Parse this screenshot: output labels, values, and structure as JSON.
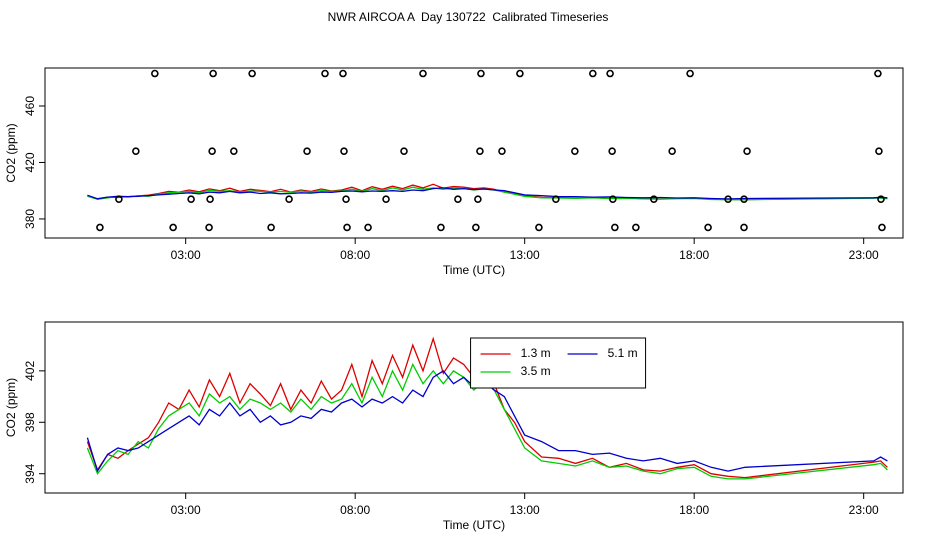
{
  "chart_data": [
    {
      "type": "line",
      "title": "NWR AIRCOA A  Day 130722  Calibrated Timeseries",
      "x_label": "Time (UTC)",
      "y_label": "CO2 (ppm)",
      "xlim": [
        -1.15,
        24.16
      ],
      "ylim": [
        366.5,
        486.9
      ],
      "xticks": [
        {
          "value": 3,
          "label": "03:00"
        },
        {
          "value": 8,
          "label": "08:00"
        },
        {
          "value": 13,
          "label": "13:00"
        },
        {
          "value": 18,
          "label": "18:00"
        },
        {
          "value": 23,
          "label": "23:00"
        }
      ],
      "yticks": [
        380,
        420,
        460
      ],
      "x": [
        0.1,
        0.4,
        0.7,
        1.0,
        1.3,
        1.6,
        1.9,
        2.2,
        2.5,
        2.8,
        3.1,
        3.4,
        3.7,
        4.0,
        4.3,
        4.6,
        4.9,
        5.2,
        5.5,
        5.8,
        6.1,
        6.4,
        6.7,
        7.0,
        7.3,
        7.6,
        7.9,
        8.2,
        8.5,
        8.8,
        9.1,
        9.4,
        9.7,
        10.0,
        10.3,
        10.6,
        10.9,
        11.2,
        11.5,
        11.8,
        12.1,
        12.4,
        12.7,
        13.0,
        13.5,
        14.0,
        14.5,
        15.0,
        15.5,
        16.0,
        16.5,
        17.0,
        17.5,
        18.0,
        18.5,
        19.0,
        19.5,
        23.3,
        23.5,
        23.7
      ],
      "series": [
        {
          "color": "#dd0000",
          "values": [
            396.5,
            394.3,
            395.5,
            395.2,
            395.8,
            396.3,
            396.8,
            398.0,
            399.5,
            399.0,
            400.5,
            399.2,
            401.3,
            400.0,
            401.8,
            399.5,
            401.0,
            400.2,
            399.3,
            401.0,
            399.0,
            400.5,
            399.5,
            401.2,
            399.8,
            400.5,
            402.5,
            400.0,
            402.8,
            401.0,
            403.2,
            401.5,
            404.0,
            402.0,
            404.5,
            401.8,
            403.0,
            402.5,
            401.5,
            402.0,
            401.0,
            399.0,
            398.0,
            396.5,
            395.3,
            395.2,
            394.8,
            395.2,
            394.5,
            394.8,
            394.3,
            394.2,
            394.5,
            394.7,
            394.0,
            393.8,
            393.7,
            394.9,
            395.0,
            394.5
          ]
        },
        {
          "color": "#00cc00",
          "values": [
            396.0,
            394.0,
            395.0,
            395.8,
            395.5,
            396.5,
            396.0,
            397.5,
            398.5,
            399.0,
            399.5,
            398.5,
            400.2,
            399.5,
            400.0,
            399.0,
            399.8,
            399.5,
            399.0,
            399.5,
            398.8,
            399.8,
            399.0,
            400.0,
            399.5,
            399.8,
            401.0,
            399.5,
            401.5,
            400.0,
            402.0,
            400.5,
            402.5,
            401.0,
            402.0,
            401.0,
            402.0,
            401.5,
            400.5,
            401.2,
            400.5,
            399.0,
            397.5,
            396.0,
            395.0,
            394.8,
            394.6,
            395.0,
            394.5,
            394.6,
            394.2,
            394.0,
            394.4,
            394.5,
            393.8,
            393.6,
            393.6,
            394.7,
            394.8,
            394.3
          ]
        },
        {
          "color": "#0000cc",
          "values": [
            396.8,
            394.2,
            395.5,
            396.0,
            395.8,
            396.0,
            396.5,
            397.0,
            397.5,
            398.0,
            398.5,
            397.8,
            399.0,
            398.5,
            399.5,
            398.5,
            399.0,
            398.0,
            398.5,
            397.8,
            398.0,
            398.5,
            398.3,
            399.0,
            398.8,
            399.5,
            399.8,
            399.2,
            399.8,
            399.5,
            400.0,
            399.5,
            400.5,
            400.0,
            401.5,
            402.0,
            401.0,
            401.5,
            400.8,
            401.2,
            400.5,
            400.0,
            398.5,
            397.0,
            396.5,
            395.8,
            395.8,
            395.5,
            395.6,
            395.2,
            395.0,
            395.2,
            394.8,
            395.0,
            394.5,
            394.2,
            394.5,
            395.0,
            395.3,
            395.0
          ]
        }
      ],
      "points": {
        "color": "#000000",
        "x": [
          2.09,
          3.81,
          4.96,
          7.11,
          7.64,
          10.0,
          11.71,
          12.86,
          15.01,
          15.52,
          17.88,
          23.42,
          1.53,
          3.78,
          4.42,
          6.58,
          7.67,
          9.44,
          11.68,
          12.33,
          14.48,
          15.58,
          17.35,
          19.56,
          23.45,
          1.03,
          3.16,
          3.72,
          6.05,
          7.73,
          8.91,
          11.03,
          11.62,
          13.92,
          15.6,
          16.81,
          19.0,
          19.47,
          23.51,
          0.47,
          2.63,
          3.69,
          5.52,
          7.76,
          8.38,
          10.53,
          11.56,
          13.42,
          15.66,
          16.28,
          18.41,
          19.47,
          23.54
        ],
        "y": [
          483,
          483,
          483,
          483,
          483,
          483,
          483,
          483,
          483,
          483,
          483,
          483,
          428,
          428,
          428,
          428,
          428,
          428,
          428,
          428,
          428,
          428,
          428,
          428,
          428,
          394,
          394,
          394,
          394,
          394,
          394,
          394,
          394,
          394,
          394,
          394,
          394,
          394,
          394,
          374,
          374,
          374,
          374,
          374,
          374,
          374,
          374,
          374,
          374,
          374,
          374,
          374,
          374
        ]
      }
    },
    {
      "type": "line",
      "x_label": "Time (UTC)",
      "y_label": "CO2 (ppm)",
      "xlim": [
        -1.15,
        24.16
      ],
      "ylim": [
        392.5,
        405.8
      ],
      "xticks": [
        {
          "value": 3,
          "label": "03:00"
        },
        {
          "value": 8,
          "label": "08:00"
        },
        {
          "value": 13,
          "label": "13:00"
        },
        {
          "value": 18,
          "label": "18:00"
        },
        {
          "value": 23,
          "label": "23:00"
        }
      ],
      "yticks": [
        394,
        398,
        402
      ],
      "legend": "top-center",
      "x": [
        0.1,
        0.4,
        0.7,
        1.0,
        1.3,
        1.6,
        1.9,
        2.2,
        2.5,
        2.8,
        3.1,
        3.4,
        3.7,
        4.0,
        4.3,
        4.6,
        4.9,
        5.2,
        5.5,
        5.8,
        6.1,
        6.4,
        6.7,
        7.0,
        7.3,
        7.6,
        7.9,
        8.2,
        8.5,
        8.8,
        9.1,
        9.4,
        9.7,
        10.0,
        10.3,
        10.6,
        10.9,
        11.2,
        11.5,
        11.8,
        12.1,
        12.4,
        12.7,
        13.0,
        13.5,
        14.0,
        14.5,
        15.0,
        15.5,
        16.0,
        16.5,
        17.0,
        17.5,
        18.0,
        18.5,
        19.0,
        19.5,
        23.3,
        23.5,
        23.7
      ],
      "series": [
        {
          "name": "1.3 m",
          "color": "#dd0000",
          "values": [
            396.5,
            394.3,
            395.5,
            395.2,
            395.8,
            396.3,
            396.8,
            398.0,
            399.5,
            399.0,
            400.5,
            399.2,
            401.3,
            400.0,
            401.8,
            399.5,
            401.0,
            400.2,
            399.3,
            401.0,
            399.0,
            400.5,
            399.5,
            401.2,
            399.8,
            400.5,
            402.5,
            400.0,
            402.8,
            401.0,
            403.2,
            401.5,
            404.0,
            402.0,
            404.5,
            401.8,
            403.0,
            402.5,
            401.5,
            402.0,
            401.0,
            399.0,
            398.0,
            396.5,
            395.3,
            395.2,
            394.8,
            395.2,
            394.5,
            394.8,
            394.3,
            394.2,
            394.5,
            394.7,
            394.0,
            393.8,
            393.7,
            394.9,
            395.0,
            394.5
          ]
        },
        {
          "name": "3.5 m",
          "color": "#00cc00",
          "values": [
            396.0,
            394.0,
            395.0,
            395.8,
            395.5,
            396.5,
            396.0,
            397.5,
            398.5,
            399.0,
            399.5,
            398.5,
            400.2,
            399.5,
            400.0,
            399.0,
            399.8,
            399.5,
            399.0,
            399.5,
            398.8,
            399.8,
            399.0,
            400.0,
            399.5,
            399.8,
            401.0,
            399.5,
            401.5,
            400.0,
            402.0,
            400.5,
            402.5,
            401.0,
            402.0,
            401.0,
            402.0,
            401.5,
            400.5,
            401.2,
            400.5,
            399.0,
            397.5,
            396.0,
            395.0,
            394.8,
            394.6,
            395.0,
            394.5,
            394.6,
            394.2,
            394.0,
            394.4,
            394.5,
            393.8,
            393.6,
            393.6,
            394.7,
            394.8,
            394.3
          ]
        },
        {
          "name": "5.1 m",
          "color": "#0000cc",
          "values": [
            396.8,
            394.2,
            395.5,
            396.0,
            395.8,
            396.0,
            396.5,
            397.0,
            397.5,
            398.0,
            398.5,
            397.8,
            399.0,
            398.5,
            399.5,
            398.5,
            399.0,
            398.0,
            398.5,
            397.8,
            398.0,
            398.5,
            398.3,
            399.0,
            398.8,
            399.5,
            399.8,
            399.2,
            399.8,
            399.5,
            400.0,
            399.5,
            400.5,
            400.0,
            401.5,
            402.0,
            401.0,
            401.5,
            400.8,
            401.2,
            400.5,
            400.0,
            398.5,
            397.0,
            396.5,
            395.8,
            395.8,
            395.5,
            395.6,
            395.2,
            395.0,
            395.2,
            394.8,
            395.0,
            394.5,
            394.2,
            394.5,
            395.0,
            395.3,
            395.0
          ]
        }
      ]
    }
  ]
}
